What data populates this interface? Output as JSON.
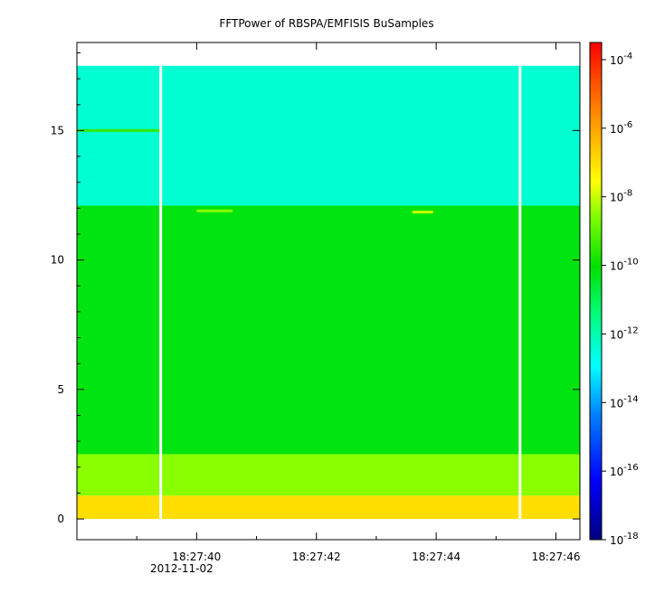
{
  "chart_data": {
    "type": "heatmap",
    "title": "FFTPower of RBSPA/EMFISIS  BuSamples",
    "xlabel": "",
    "ylabel": "",
    "x_ticks": [
      {
        "value": 40,
        "label": "18:27:40"
      },
      {
        "value": 42,
        "label": "18:27:42"
      },
      {
        "value": 44,
        "label": "18:27:44"
      },
      {
        "value": 46,
        "label": "18:27:46"
      }
    ],
    "x_date_label": "2012-11-02",
    "xlim": [
      38.0,
      46.4
    ],
    "y_ticks": [
      0,
      5,
      10,
      15
    ],
    "ylim": [
      -0.8,
      18.4
    ],
    "colorbar": {
      "scale": "log",
      "range_exponents": [
        -18,
        -3.5
      ],
      "ticks": [
        {
          "base": "10",
          "exp": "-4"
        },
        {
          "base": "10",
          "exp": "-6"
        },
        {
          "base": "10",
          "exp": "-8"
        },
        {
          "base": "10",
          "exp": "-10"
        },
        {
          "base": "10",
          "exp": "-12"
        },
        {
          "base": "10",
          "exp": "-14"
        },
        {
          "base": "10",
          "exp": "-16"
        },
        {
          "base": "10",
          "exp": "-18"
        }
      ]
    },
    "data_extent": {
      "t_start": 38.0,
      "t_end": 46.4,
      "f_min": 0.0,
      "f_max": 17.5
    },
    "data_gaps": [
      39.4,
      45.4
    ],
    "bands": [
      {
        "f_from": 0.0,
        "f_to": 0.9,
        "level_exp": -7.0
      },
      {
        "f_from": 0.9,
        "f_to": 2.5,
        "level_exp": -8.5
      },
      {
        "f_from": 2.5,
        "f_to": 12.1,
        "level_exp": -10.2
      },
      {
        "f_from": 12.1,
        "f_to": 17.5,
        "level_exp": -12.4
      }
    ],
    "features": [
      {
        "type": "line",
        "t_from": 38.0,
        "t_to": 39.4,
        "f": 15.0,
        "level_exp": -9.5
      },
      {
        "type": "line",
        "t_from": 40.0,
        "t_to": 40.6,
        "f": 11.9,
        "level_exp": -8.5
      },
      {
        "type": "line",
        "t_from": 43.6,
        "t_to": 43.95,
        "f": 11.85,
        "level_exp": -8.0
      }
    ]
  }
}
